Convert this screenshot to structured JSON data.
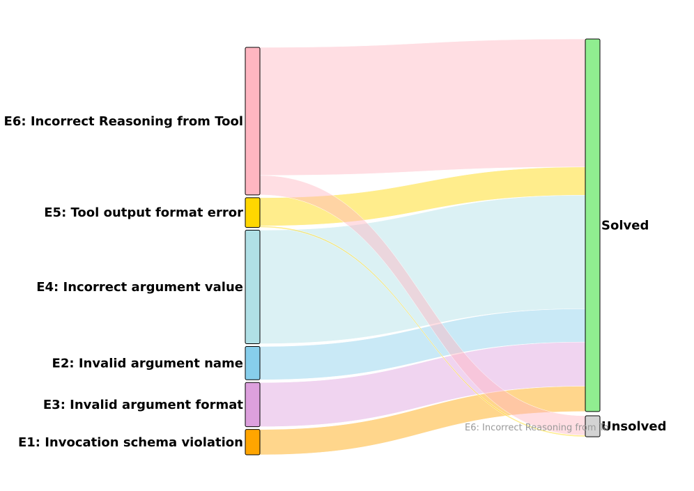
{
  "chart_data": {
    "type": "sankey",
    "sources": [
      {
        "id": "E6",
        "label": "E6: Incorrect Reasoning from Tool",
        "color": "#ffb6c1"
      },
      {
        "id": "E5",
        "label": "E5: Tool output format error",
        "color": "#ffd700"
      },
      {
        "id": "E4",
        "label": "E4: Incorrect argument value",
        "color": "#b0e0e6"
      },
      {
        "id": "E2",
        "label": "E2: Invalid argument name",
        "color": "#87ceeb"
      },
      {
        "id": "E3",
        "label": "E3: Invalid argument format",
        "color": "#dda0dd"
      },
      {
        "id": "E1",
        "label": "E1: Invocation schema violation",
        "color": "#ffa500"
      }
    ],
    "targets": [
      {
        "id": "solved",
        "label": "Solved",
        "color": "#90ee90"
      },
      {
        "id": "unsolved",
        "label": "Unsolved",
        "color": "#d3d3d3"
      }
    ],
    "links": [
      {
        "source": "E6",
        "target": "solved",
        "value": 177
      },
      {
        "source": "E6",
        "target": "unsolved",
        "value": 27
      },
      {
        "source": "E5",
        "target": "solved",
        "value": 39
      },
      {
        "source": "E5",
        "target": "unsolved",
        "value": 2
      },
      {
        "source": "E4",
        "target": "solved",
        "value": 157
      },
      {
        "source": "E2",
        "target": "solved",
        "value": 46
      },
      {
        "source": "E3",
        "target": "solved",
        "value": 61
      },
      {
        "source": "E1",
        "target": "solved",
        "value": 35
      }
    ],
    "hover_label": "E6: Incorrect Reasoning from To"
  }
}
